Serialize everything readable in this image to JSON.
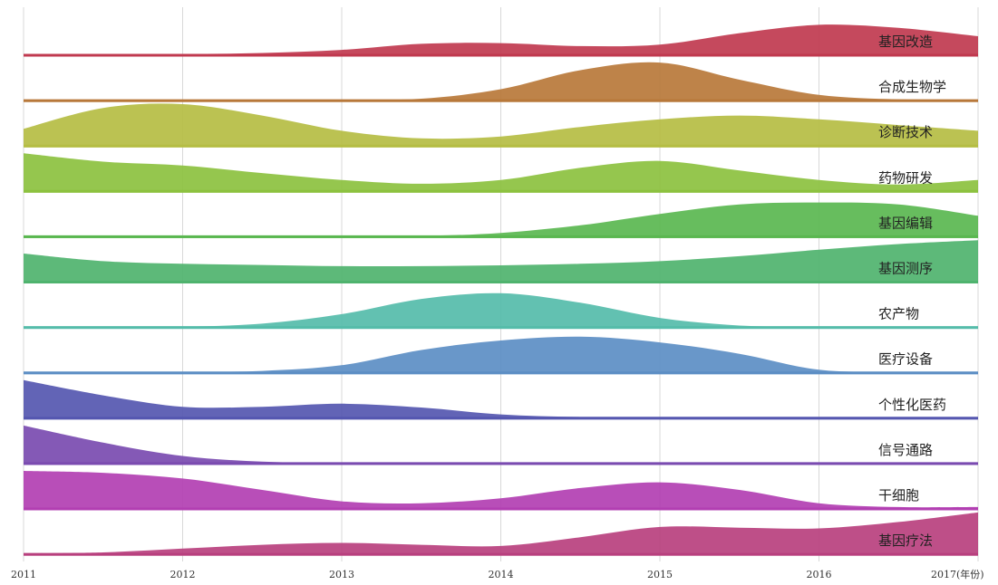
{
  "chart_data": {
    "type": "area",
    "subtype": "ridgeline",
    "x_ticks": [
      "2011",
      "2012",
      "2013",
      "2014",
      "2015",
      "2016",
      "2017(年份)"
    ],
    "x": [
      2011,
      2011.5,
      2012,
      2012.5,
      2013,
      2013.5,
      2014,
      2014.5,
      2015,
      2015.5,
      2016,
      2016.5,
      2017
    ],
    "grid": true,
    "legend": "none",
    "series": [
      {
        "name": "基因改造",
        "color": "#c0394f",
        "values": [
          0.02,
          0.02,
          0.03,
          0.06,
          0.14,
          0.3,
          0.32,
          0.24,
          0.28,
          0.58,
          0.8,
          0.72,
          0.5
        ]
      },
      {
        "name": "合成生物学",
        "color": "#b8783a",
        "values": [
          0.02,
          0.02,
          0.02,
          0.02,
          0.02,
          0.05,
          0.3,
          0.8,
          1.0,
          0.55,
          0.15,
          0.03,
          0.02
        ]
      },
      {
        "name": "诊断技术",
        "color": "#b5bd43",
        "values": [
          0.45,
          1.0,
          1.1,
          0.8,
          0.4,
          0.2,
          0.25,
          0.5,
          0.7,
          0.8,
          0.7,
          0.55,
          0.4
        ]
      },
      {
        "name": "药物研发",
        "color": "#8cc13f",
        "values": [
          1.0,
          0.78,
          0.68,
          0.48,
          0.3,
          0.2,
          0.3,
          0.62,
          0.8,
          0.55,
          0.3,
          0.18,
          0.3
        ]
      },
      {
        "name": "基因编辑",
        "color": "#5ab750",
        "values": [
          0.02,
          0.02,
          0.02,
          0.02,
          0.02,
          0.02,
          0.1,
          0.3,
          0.6,
          0.85,
          0.9,
          0.85,
          0.55
        ]
      },
      {
        "name": "基因测序",
        "color": "#4fb36e",
        "values": [
          0.75,
          0.55,
          0.48,
          0.45,
          0.42,
          0.42,
          0.44,
          0.48,
          0.55,
          0.68,
          0.85,
          1.0,
          1.1
        ]
      },
      {
        "name": "农产物",
        "color": "#55bcaa",
        "values": [
          0.02,
          0.02,
          0.02,
          0.1,
          0.35,
          0.75,
          0.9,
          0.65,
          0.25,
          0.05,
          0.02,
          0.02,
          0.02
        ]
      },
      {
        "name": "医疗设备",
        "color": "#5c8ec4",
        "values": [
          0.02,
          0.02,
          0.02,
          0.05,
          0.2,
          0.6,
          0.85,
          0.95,
          0.8,
          0.5,
          0.08,
          0.02,
          0.02
        ]
      },
      {
        "name": "个性化医药",
        "color": "#5557b0",
        "values": [
          1.0,
          0.6,
          0.3,
          0.3,
          0.38,
          0.28,
          0.1,
          0.03,
          0.02,
          0.02,
          0.02,
          0.02,
          0.02
        ]
      },
      {
        "name": "信号通路",
        "color": "#7a4bb0",
        "values": [
          1.0,
          0.55,
          0.2,
          0.05,
          0.02,
          0.02,
          0.02,
          0.02,
          0.02,
          0.02,
          0.02,
          0.02,
          0.02
        ]
      },
      {
        "name": "干细胞",
        "color": "#b23fb2",
        "values": [
          1.0,
          0.95,
          0.8,
          0.5,
          0.2,
          0.15,
          0.28,
          0.55,
          0.7,
          0.5,
          0.15,
          0.05,
          0.05
        ]
      },
      {
        "name": "基因疗法",
        "color": "#b8407e",
        "values": [
          0.02,
          0.05,
          0.15,
          0.25,
          0.3,
          0.25,
          0.22,
          0.45,
          0.72,
          0.7,
          0.68,
          0.85,
          1.1
        ]
      }
    ]
  }
}
